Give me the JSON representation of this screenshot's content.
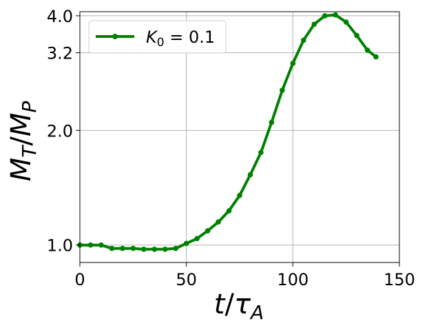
{
  "chart_data": {
    "type": "line",
    "xlabel": "t/τ_A",
    "ylabel": "M_T/M_P",
    "xlim": [
      0,
      150
    ],
    "ylim": [
      0.9,
      4.1
    ],
    "y_scale": "log",
    "x_ticks": [
      0,
      50,
      100,
      150
    ],
    "x_tick_labels": [
      "0",
      "50",
      "100",
      "150"
    ],
    "y_ticks": [
      1.0,
      2.0,
      3.2,
      4.0
    ],
    "y_tick_labels": [
      "1.0",
      "2.0",
      "3.2",
      "4.0"
    ],
    "grid": true,
    "legend_position": "top-left",
    "series": [
      {
        "name": "K_0 = 0.1",
        "legend_label": "K₀ = 0.1",
        "color": "#008000",
        "marker": "circle",
        "x": [
          0,
          5,
          10,
          15,
          20,
          25,
          30,
          35,
          40,
          45,
          50,
          55,
          60,
          65,
          70,
          75,
          80,
          85,
          90,
          95,
          100,
          105,
          110,
          115,
          120,
          125,
          130,
          135,
          139
        ],
        "y": [
          1.0,
          1.0,
          1.0,
          0.98,
          0.98,
          0.98,
          0.975,
          0.975,
          0.975,
          0.98,
          1.01,
          1.04,
          1.09,
          1.15,
          1.23,
          1.35,
          1.53,
          1.75,
          2.1,
          2.55,
          3.0,
          3.45,
          3.8,
          4.0,
          4.02,
          3.85,
          3.55,
          3.25,
          3.12
        ]
      }
    ]
  }
}
